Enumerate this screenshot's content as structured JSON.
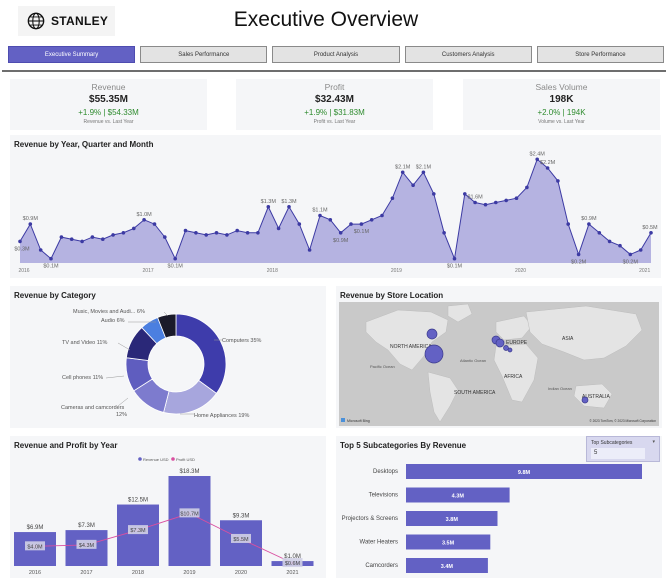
{
  "header": {
    "logo_text": "STANLEY",
    "title": "Executive Overview"
  },
  "nav": {
    "tabs": [
      "Executive Summary",
      "Sales Performance",
      "Product Analysis",
      "Customers Analysis",
      "Store Performance"
    ],
    "active": 0
  },
  "kpis": [
    {
      "label": "Revenue",
      "value": "$55.35M",
      "delta": "+1.9% | $54.33M",
      "sub": "Revenue vs. Last Year"
    },
    {
      "label": "Profit",
      "value": "$32.43M",
      "delta": "+1.9% | $31.83M",
      "sub": "Profit vs. Last Year"
    },
    {
      "label": "Sales Volume",
      "value": "198K",
      "delta": "+2.0% | 194K",
      "sub": "Volume vs. Last Year"
    }
  ],
  "colors": {
    "accent": "#6361c4",
    "fill": "#a9a7dd",
    "profit_line": "#d94fa0",
    "positive": "#2e8b2e"
  },
  "revenue_trend": {
    "title": "Revenue by Year, Quarter and Month",
    "x_labels": [
      "2016",
      "2017",
      "2018",
      "2019",
      "2020",
      "2021"
    ],
    "point_labels": [
      "$0.9M",
      "$0.3M",
      "$0.1M",
      "$1.0M",
      "$0.1M",
      "$1.3M",
      "$1.3M",
      "$1.1M",
      "$0.9M",
      "$0.1M",
      "$2.1M",
      "$2.1M",
      "$1.6M",
      "$0.1M",
      "$2.4M",
      "$2.2M",
      "$0.9M",
      "$0.2M",
      "$0.2M",
      "$0.5M"
    ]
  },
  "category": {
    "title": "Revenue by Category",
    "labels": [
      "Computers 35%",
      "Home Appliances 19%",
      "Cameras and camcorders",
      "12%",
      "Cell phones 11%",
      "TV and Video 11%",
      "Audio 6%",
      "Music, Movies and Audi... 6%"
    ]
  },
  "map": {
    "title": "Revenue by Store Location",
    "labels": [
      "NORTH AMERICA",
      "EUROPE",
      "ASIA",
      "AFRICA",
      "SOUTH AMERICA",
      "AUSTRALIA",
      "Pacific Ocean",
      "Atlantic Ocean",
      "Indian Ocean"
    ],
    "copyright": "© 2023 TomTom, © 2023 Microsoft Corporation",
    "brand": "Microsoft Bing"
  },
  "rev_profit": {
    "title": "Revenue and Profit by Year",
    "legend": [
      "Revenue USD",
      "Profit USD"
    ],
    "years": [
      "2016",
      "2017",
      "2018",
      "2019",
      "2020",
      "2021"
    ],
    "revenue_labels": [
      "$6.9M",
      "$7.3M",
      "$12.5M",
      "$18.3M",
      "$9.3M",
      "$1.0M"
    ],
    "profit_labels": [
      "$4.0M",
      "$4.3M",
      "$7.3M",
      "$10.7M",
      "$5.5M",
      "$0.6M"
    ]
  },
  "subcats": {
    "title": "Top 5 Subcategories By Revenue",
    "slicer_title": "Top Subcategories",
    "slicer_value": "5",
    "names": [
      "Desktops",
      "Televisions",
      "Projectors & Screens",
      "Water Heaters",
      "Camcorders"
    ],
    "value_labels": [
      "9.8M",
      "4.3M",
      "3.8M",
      "3.5M",
      "3.4M"
    ]
  },
  "chart_data": [
    {
      "type": "area",
      "title": "Revenue by Year, Quarter and Month",
      "x": [
        "2016-01",
        "2016-02",
        "2016-03",
        "2016-04",
        "2016-05",
        "2016-06",
        "2016-07",
        "2016-08",
        "2016-09",
        "2016-10",
        "2016-11",
        "2016-12",
        "2017-01",
        "2017-02",
        "2017-03",
        "2017-04",
        "2017-05",
        "2017-06",
        "2017-07",
        "2017-08",
        "2017-09",
        "2017-10",
        "2017-11",
        "2017-12",
        "2018-01",
        "2018-02",
        "2018-03",
        "2018-04",
        "2018-05",
        "2018-06",
        "2018-07",
        "2018-08",
        "2018-09",
        "2018-10",
        "2018-11",
        "2018-12",
        "2019-01",
        "2019-02",
        "2019-03",
        "2019-04",
        "2019-05",
        "2019-06",
        "2019-07",
        "2019-08",
        "2019-09",
        "2019-10",
        "2019-11",
        "2019-12",
        "2020-01",
        "2020-02",
        "2020-03",
        "2020-04",
        "2020-05",
        "2020-06",
        "2020-07",
        "2020-08",
        "2020-09",
        "2020-10",
        "2020-11",
        "2020-12",
        "2021-01",
        "2021-02"
      ],
      "values": [
        0.5,
        0.9,
        0.3,
        0.1,
        0.6,
        0.55,
        0.5,
        0.6,
        0.55,
        0.65,
        0.7,
        0.8,
        1.0,
        0.9,
        0.6,
        0.1,
        0.75,
        0.7,
        0.65,
        0.7,
        0.65,
        0.75,
        0.7,
        0.7,
        1.3,
        0.8,
        1.3,
        0.9,
        0.3,
        1.1,
        1.0,
        0.7,
        0.9,
        0.9,
        1.0,
        1.1,
        1.5,
        2.1,
        1.8,
        2.1,
        1.6,
        0.7,
        0.1,
        1.6,
        1.4,
        1.35,
        1.4,
        1.45,
        1.5,
        1.75,
        2.4,
        2.2,
        1.9,
        0.9,
        0.2,
        0.9,
        0.7,
        0.5,
        0.4,
        0.2,
        0.3,
        0.7
      ],
      "unit": "USD millions"
    },
    {
      "type": "pie",
      "title": "Revenue by Category",
      "categories": [
        "Computers",
        "Home Appliances",
        "Cameras and camcorders",
        "Cell phones",
        "TV and Video",
        "Audio",
        "Music, Movies and Audio Books"
      ],
      "values": [
        35,
        19,
        12,
        11,
        11,
        6,
        6
      ]
    },
    {
      "type": "bar",
      "title": "Revenue and Profit by Year",
      "categories": [
        "2016",
        "2017",
        "2018",
        "2019",
        "2020",
        "2021"
      ],
      "series": [
        {
          "name": "Revenue USD",
          "values": [
            6.9,
            7.3,
            12.5,
            18.3,
            9.3,
            1.0
          ]
        },
        {
          "name": "Profit USD",
          "values": [
            4.0,
            4.3,
            7.3,
            10.7,
            5.5,
            0.6
          ]
        }
      ]
    },
    {
      "type": "bar",
      "title": "Top 5 Subcategories By Revenue",
      "categories": [
        "Desktops",
        "Televisions",
        "Projectors & Screens",
        "Water Heaters",
        "Camcorders"
      ],
      "values": [
        9.8,
        4.3,
        3.8,
        3.5,
        3.4
      ]
    }
  ]
}
